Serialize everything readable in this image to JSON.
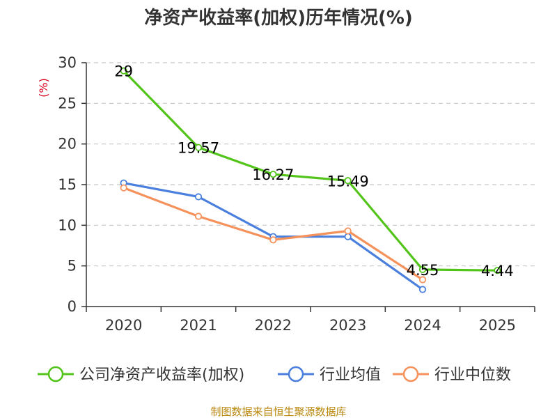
{
  "chart_data": {
    "type": "line",
    "title": "净资产收益率(加权)历年情况(%)",
    "ylabel": "(%)",
    "xlabel": "",
    "ylim": [
      0,
      30
    ],
    "yticks": [
      0,
      5,
      10,
      15,
      20,
      25,
      30
    ],
    "grid": true,
    "legend_position": "bottom",
    "categories": [
      "2020",
      "2021",
      "2022",
      "2023",
      "2024",
      "2025"
    ],
    "series": [
      {
        "name": "公司净资产收益率(加权)",
        "color": "#52c41a",
        "values": [
          29,
          19.57,
          16.27,
          15.49,
          4.55,
          4.44
        ],
        "labels": [
          "29",
          "19.57",
          "16.27",
          "15.49",
          "4.55",
          "4.44"
        ]
      },
      {
        "name": "行业均值",
        "color": "#4a7fdd",
        "values": [
          15.2,
          13.5,
          8.6,
          8.6,
          2.1,
          null
        ],
        "labels": []
      },
      {
        "name": "行业中位数",
        "color": "#f5925c",
        "values": [
          14.6,
          11.1,
          8.2,
          9.3,
          3.3,
          null
        ],
        "labels": []
      }
    ]
  },
  "footer": {
    "source": "制图数据来自恒生聚源数据库"
  }
}
